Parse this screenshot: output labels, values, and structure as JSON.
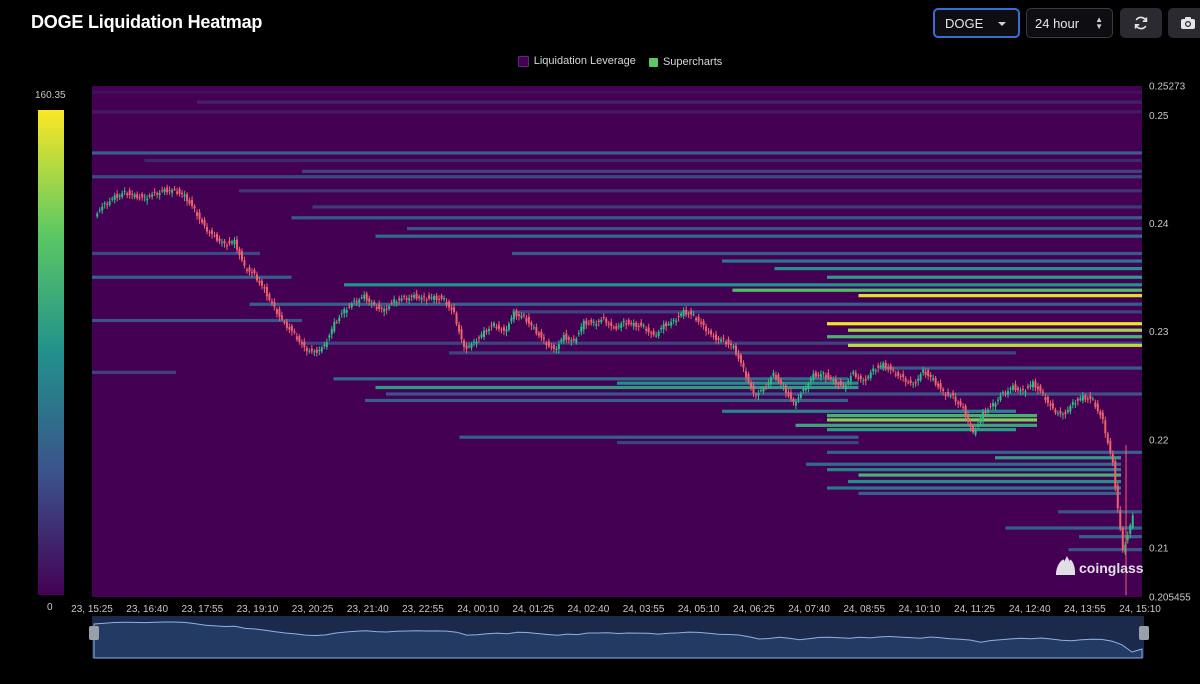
{
  "header": {
    "title": "DOGE Liquidation Heatmap",
    "coin_select": "DOGE",
    "range_select": "24 hour",
    "refresh_icon": "refresh-icon",
    "camera_icon": "camera-icon"
  },
  "colors": {
    "background": "#000000",
    "heat_base": "#440154",
    "heat_high": "#fde725",
    "candle_up": "#2dbd85",
    "candle_down": "#f0616d",
    "accent": "#3a6bd9"
  },
  "watermark": "coinglass",
  "chart_data": {
    "type": "heatmap",
    "title": "DOGE Liquidation Heatmap",
    "legend": [
      "Liquidation Leverage",
      "Supercharts"
    ],
    "legend_colors": [
      "#440154",
      "#5ec962"
    ],
    "legend_position": "top-center",
    "colorbar": {
      "min": 0,
      "max": 160.35,
      "min_label": "0",
      "max_label": "160.35"
    },
    "y_axis": {
      "position": "right",
      "min": 0.205455,
      "max": 0.25273,
      "ticks": [
        0.25273,
        0.25,
        0.24,
        0.23,
        0.22,
        0.21,
        0.205455
      ],
      "tick_labels": [
        "0.25273",
        "0.25",
        "0.24",
        "0.23",
        "0.22",
        "0.21",
        "0.205455"
      ]
    },
    "x_axis": {
      "ticks": [
        "23, 15:25",
        "23, 16:40",
        "23, 17:55",
        "23, 19:10",
        "23, 20:25",
        "23, 21:40",
        "23, 22:55",
        "24, 00:10",
        "24, 01:25",
        "24, 02:40",
        "24, 03:55",
        "24, 05:10",
        "24, 06:25",
        "24, 07:40",
        "24, 08:55",
        "24, 10:10",
        "24, 11:25",
        "24, 12:40",
        "24, 13:55",
        "24, 15:10"
      ]
    },
    "price_path": [
      [
        0,
        0.2409
      ],
      [
        1,
        0.2418
      ],
      [
        2,
        0.2425
      ],
      [
        3,
        0.2429
      ],
      [
        4,
        0.2426
      ],
      [
        5,
        0.2424
      ],
      [
        6,
        0.2428
      ],
      [
        7,
        0.2431
      ],
      [
        8,
        0.2431
      ],
      [
        9,
        0.2426
      ],
      [
        10,
        0.2413
      ],
      [
        11,
        0.2397
      ],
      [
        12,
        0.2388
      ],
      [
        13,
        0.2381
      ],
      [
        14,
        0.2384
      ],
      [
        15,
        0.236
      ],
      [
        16,
        0.2353
      ],
      [
        17,
        0.2339
      ],
      [
        18,
        0.2322
      ],
      [
        19,
        0.2308
      ],
      [
        20,
        0.2298
      ],
      [
        21,
        0.2285
      ],
      [
        22,
        0.2281
      ],
      [
        23,
        0.2287
      ],
      [
        24,
        0.2308
      ],
      [
        25,
        0.232
      ],
      [
        26,
        0.2328
      ],
      [
        27,
        0.2333
      ],
      [
        28,
        0.2324
      ],
      [
        29,
        0.232
      ],
      [
        30,
        0.2329
      ],
      [
        31,
        0.2331
      ],
      [
        32,
        0.2333
      ],
      [
        33,
        0.2331
      ],
      [
        34,
        0.2332
      ],
      [
        35,
        0.233
      ],
      [
        36,
        0.2317
      ],
      [
        37,
        0.2285
      ],
      [
        38,
        0.229
      ],
      [
        39,
        0.23
      ],
      [
        40,
        0.2307
      ],
      [
        41,
        0.23
      ],
      [
        42,
        0.2317
      ],
      [
        43,
        0.2314
      ],
      [
        44,
        0.2303
      ],
      [
        45,
        0.2292
      ],
      [
        46,
        0.2283
      ],
      [
        47,
        0.2296
      ],
      [
        48,
        0.2291
      ],
      [
        49,
        0.2309
      ],
      [
        50,
        0.2308
      ],
      [
        51,
        0.2312
      ],
      [
        52,
        0.2303
      ],
      [
        53,
        0.2309
      ],
      [
        54,
        0.2307
      ],
      [
        55,
        0.2305
      ],
      [
        56,
        0.2296
      ],
      [
        57,
        0.2306
      ],
      [
        58,
        0.231
      ],
      [
        59,
        0.2319
      ],
      [
        60,
        0.2315
      ],
      [
        61,
        0.2305
      ],
      [
        62,
        0.2295
      ],
      [
        63,
        0.2292
      ],
      [
        64,
        0.2286
      ],
      [
        65,
        0.2266
      ],
      [
        66,
        0.2242
      ],
      [
        67,
        0.2247
      ],
      [
        68,
        0.2261
      ],
      [
        69,
        0.2249
      ],
      [
        70,
        0.2234
      ],
      [
        71,
        0.2246
      ],
      [
        72,
        0.226
      ],
      [
        73,
        0.2261
      ],
      [
        74,
        0.2255
      ],
      [
        75,
        0.2249
      ],
      [
        76,
        0.2262
      ],
      [
        77,
        0.2254
      ],
      [
        78,
        0.2265
      ],
      [
        79,
        0.227
      ],
      [
        80,
        0.2263
      ],
      [
        81,
        0.2257
      ],
      [
        82,
        0.2251
      ],
      [
        83,
        0.2264
      ],
      [
        84,
        0.2256
      ],
      [
        85,
        0.2244
      ],
      [
        86,
        0.224
      ],
      [
        87,
        0.2229
      ],
      [
        88,
        0.2206
      ],
      [
        89,
        0.2225
      ],
      [
        90,
        0.2233
      ],
      [
        91,
        0.2243
      ],
      [
        92,
        0.2249
      ],
      [
        93,
        0.2245
      ],
      [
        94,
        0.2253
      ],
      [
        95,
        0.2242
      ],
      [
        96,
        0.2228
      ],
      [
        97,
        0.2223
      ],
      [
        98,
        0.2234
      ],
      [
        99,
        0.224
      ],
      [
        100,
        0.2237
      ],
      [
        101,
        0.2218
      ],
      [
        102,
        0.2178
      ],
      [
        103,
        0.2097
      ],
      [
        104,
        0.2129
      ]
    ],
    "heat_bands": [
      {
        "price": 0.2521,
        "x0": 0.0,
        "x1": 1.0,
        "intensity": 0.04
      },
      {
        "price": 0.2512,
        "x0": 0.1,
        "x1": 1.0,
        "intensity": 0.1
      },
      {
        "price": 0.2503,
        "x0": 0.0,
        "x1": 1.0,
        "intensity": 0.08
      },
      {
        "price": 0.2465,
        "x0": 0.0,
        "x1": 1.0,
        "intensity": 0.3
      },
      {
        "price": 0.2458,
        "x0": 0.05,
        "x1": 1.0,
        "intensity": 0.12
      },
      {
        "price": 0.2448,
        "x0": 0.2,
        "x1": 1.0,
        "intensity": 0.2
      },
      {
        "price": 0.2443,
        "x0": 0.0,
        "x1": 1.0,
        "intensity": 0.22
      },
      {
        "price": 0.243,
        "x0": 0.14,
        "x1": 1.0,
        "intensity": 0.15
      },
      {
        "price": 0.2415,
        "x0": 0.21,
        "x1": 1.0,
        "intensity": 0.18
      },
      {
        "price": 0.2405,
        "x0": 0.19,
        "x1": 1.0,
        "intensity": 0.28
      },
      {
        "price": 0.2395,
        "x0": 0.3,
        "x1": 1.0,
        "intensity": 0.25
      },
      {
        "price": 0.2388,
        "x0": 0.27,
        "x1": 1.0,
        "intensity": 0.35
      },
      {
        "price": 0.2372,
        "x0": 0.0,
        "x1": 0.16,
        "intensity": 0.22
      },
      {
        "price": 0.2372,
        "x0": 0.4,
        "x1": 1.0,
        "intensity": 0.28
      },
      {
        "price": 0.2365,
        "x0": 0.6,
        "x1": 1.0,
        "intensity": 0.4
      },
      {
        "price": 0.2358,
        "x0": 0.65,
        "x1": 1.0,
        "intensity": 0.5
      },
      {
        "price": 0.235,
        "x0": 0.0,
        "x1": 0.19,
        "intensity": 0.3
      },
      {
        "price": 0.235,
        "x0": 0.7,
        "x1": 1.0,
        "intensity": 0.55
      },
      {
        "price": 0.2343,
        "x0": 0.24,
        "x1": 1.0,
        "intensity": 0.5
      },
      {
        "price": 0.2338,
        "x0": 0.61,
        "x1": 1.0,
        "intensity": 0.7
      },
      {
        "price": 0.2333,
        "x0": 0.73,
        "x1": 1.0,
        "intensity": 0.95
      },
      {
        "price": 0.2325,
        "x0": 0.15,
        "x1": 1.0,
        "intensity": 0.3
      },
      {
        "price": 0.2318,
        "x0": 0.4,
        "x1": 1.0,
        "intensity": 0.2
      },
      {
        "price": 0.231,
        "x0": 0.0,
        "x1": 0.2,
        "intensity": 0.25
      },
      {
        "price": 0.2307,
        "x0": 0.7,
        "x1": 1.0,
        "intensity": 0.98
      },
      {
        "price": 0.2301,
        "x0": 0.72,
        "x1": 1.0,
        "intensity": 0.85
      },
      {
        "price": 0.2295,
        "x0": 0.7,
        "x1": 1.0,
        "intensity": 0.65
      },
      {
        "price": 0.2289,
        "x0": 0.2,
        "x1": 1.0,
        "intensity": 0.2
      },
      {
        "price": 0.2287,
        "x0": 0.72,
        "x1": 1.0,
        "intensity": 0.9
      },
      {
        "price": 0.228,
        "x0": 0.34,
        "x1": 0.88,
        "intensity": 0.2
      },
      {
        "price": 0.2266,
        "x0": 0.75,
        "x1": 1.0,
        "intensity": 0.28
      },
      {
        "price": 0.2262,
        "x0": 0.0,
        "x1": 0.08,
        "intensity": 0.2
      },
      {
        "price": 0.2256,
        "x0": 0.23,
        "x1": 0.72,
        "intensity": 0.35
      },
      {
        "price": 0.2252,
        "x0": 0.5,
        "x1": 0.73,
        "intensity": 0.5
      },
      {
        "price": 0.2248,
        "x0": 0.27,
        "x1": 0.73,
        "intensity": 0.55
      },
      {
        "price": 0.2242,
        "x0": 0.28,
        "x1": 1.0,
        "intensity": 0.25
      },
      {
        "price": 0.2236,
        "x0": 0.26,
        "x1": 0.72,
        "intensity": 0.3
      },
      {
        "price": 0.2226,
        "x0": 0.6,
        "x1": 0.88,
        "intensity": 0.45
      },
      {
        "price": 0.2222,
        "x0": 0.7,
        "x1": 0.9,
        "intensity": 0.65
      },
      {
        "price": 0.2218,
        "x0": 0.7,
        "x1": 0.9,
        "intensity": 0.8
      },
      {
        "price": 0.2213,
        "x0": 0.67,
        "x1": 0.9,
        "intensity": 0.6
      },
      {
        "price": 0.2209,
        "x0": 0.7,
        "x1": 0.88,
        "intensity": 0.55
      },
      {
        "price": 0.2202,
        "x0": 0.35,
        "x1": 0.73,
        "intensity": 0.3
      },
      {
        "price": 0.2197,
        "x0": 0.5,
        "x1": 0.73,
        "intensity": 0.2
      },
      {
        "price": 0.2188,
        "x0": 0.7,
        "x1": 1.0,
        "intensity": 0.3
      },
      {
        "price": 0.2183,
        "x0": 0.86,
        "x1": 0.98,
        "intensity": 0.55
      },
      {
        "price": 0.2177,
        "x0": 0.68,
        "x1": 0.98,
        "intensity": 0.35
      },
      {
        "price": 0.2172,
        "x0": 0.7,
        "x1": 0.98,
        "intensity": 0.45
      },
      {
        "price": 0.2167,
        "x0": 0.73,
        "x1": 0.98,
        "intensity": 0.65
      },
      {
        "price": 0.2161,
        "x0": 0.72,
        "x1": 0.98,
        "intensity": 0.5
      },
      {
        "price": 0.2155,
        "x0": 0.7,
        "x1": 0.98,
        "intensity": 0.4
      },
      {
        "price": 0.215,
        "x0": 0.73,
        "x1": 0.98,
        "intensity": 0.3
      },
      {
        "price": 0.2133,
        "x0": 0.92,
        "x1": 1.0,
        "intensity": 0.25
      },
      {
        "price": 0.2118,
        "x0": 0.87,
        "x1": 1.0,
        "intensity": 0.3
      },
      {
        "price": 0.211,
        "x0": 0.94,
        "x1": 1.0,
        "intensity": 0.3
      },
      {
        "price": 0.2098,
        "x0": 0.93,
        "x1": 1.0,
        "intensity": 0.25
      }
    ]
  }
}
